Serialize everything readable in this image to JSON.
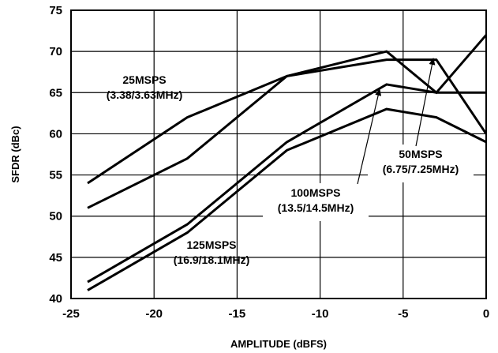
{
  "chart_data": {
    "type": "line",
    "xlabel": "AMPLITUDE (dBFS)",
    "ylabel": "SFDR (dBc)",
    "xlim": [
      -25,
      0
    ],
    "ylim": [
      40,
      75
    ],
    "xticks": [
      -25,
      -20,
      -15,
      -10,
      -5,
      0
    ],
    "yticks": [
      40,
      45,
      50,
      55,
      60,
      65,
      70,
      75
    ],
    "grid": true,
    "series": [
      {
        "x": [
          -24,
          -18,
          -12,
          -6,
          -3,
          0
        ],
        "values": [
          54,
          62,
          67,
          70,
          65,
          72
        ]
      },
      {
        "x": [
          -24,
          -18,
          -12,
          -6,
          -3,
          0
        ],
        "values": [
          51,
          57,
          67,
          69,
          69,
          60
        ]
      },
      {
        "x": [
          -24,
          -18,
          -12,
          -6,
          -3,
          0
        ],
        "values": [
          42,
          49,
          59,
          66,
          65,
          65
        ]
      },
      {
        "x": [
          -24,
          -18,
          -12,
          -6,
          -3,
          0
        ],
        "values": [
          41,
          48,
          58,
          63,
          62,
          59
        ]
      }
    ],
    "annotations": [
      {
        "lines": [
          "25MSPS",
          "(3.38/3.63MHz)"
        ]
      },
      {
        "lines": [
          "50MSPS",
          "(6.75/7.25MHz)"
        ]
      },
      {
        "lines": [
          "100MSPS",
          "(13.5/14.5MHz)"
        ]
      },
      {
        "lines": [
          "125MSPS",
          "(16.9/18.1MHz)"
        ]
      }
    ]
  }
}
